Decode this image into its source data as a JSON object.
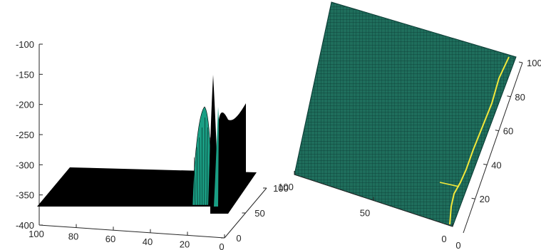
{
  "chart_data": [
    {
      "type": "surface",
      "view": "3d-oblique",
      "x_axis": {
        "ticks": [
          100,
          80,
          60,
          40,
          20,
          0
        ],
        "range": [
          0,
          100
        ]
      },
      "y_axis": {
        "ticks": [
          0,
          50,
          100
        ],
        "range": [
          0,
          100
        ]
      },
      "z_axis": {
        "ticks": [
          -100,
          -150,
          -200,
          -250,
          -300,
          -350,
          -400
        ],
        "range": [
          -400,
          -100
        ]
      },
      "base_level": -350,
      "features": [
        {
          "kind": "green-ridge",
          "x": 14,
          "peak_z": -210
        },
        {
          "kind": "black-spike",
          "x": 8,
          "peak_z": -155
        },
        {
          "kind": "black-spike",
          "x": 6,
          "peak_z": -165
        },
        {
          "kind": "black-wall",
          "x": 1,
          "peak_z": -200
        }
      ],
      "surface_color": "#000000",
      "ridge_color": "#1a9e84",
      "grid": false
    },
    {
      "type": "surface",
      "view": "top-down-rotated",
      "x_axis": {
        "ticks": [
          100,
          50,
          0
        ],
        "range": [
          0,
          100
        ]
      },
      "y_axis": {
        "ticks": [
          20,
          40,
          60,
          80,
          100
        ],
        "range": [
          0,
          100
        ],
        "zero_label": "0"
      },
      "surface_color": "#1f6e5c",
      "mesh_color": "#0b3a33",
      "highlight_color": "#f3e83a",
      "highlight": "near-diagonal yellow line close to x=0 edge"
    }
  ]
}
